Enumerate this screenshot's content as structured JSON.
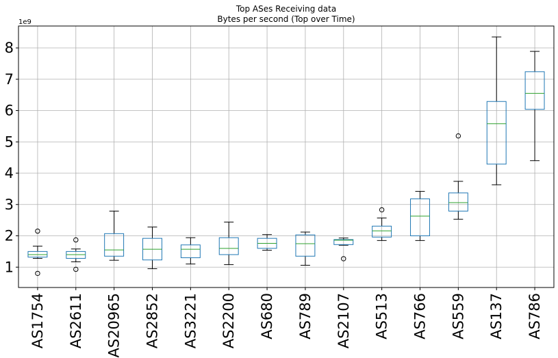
{
  "chart_data": {
    "type": "box",
    "title": "Top ASes Receiving data",
    "subtitle": "Bytes per second (Top over Time)",
    "y_offset_label": "1e9",
    "xlabel": "",
    "ylabel": "",
    "ylim": [
      0.35,
      8.7
    ],
    "yticks": [
      1,
      2,
      3,
      4,
      5,
      6,
      7,
      8
    ],
    "grid": true,
    "colors": {
      "box": "#1f77b4",
      "median": "#2ca02c",
      "whisker": "#000000",
      "grid": "#b0b0b0"
    },
    "categories": [
      "AS1754",
      "AS2611",
      "AS20965",
      "AS2852",
      "AS3221",
      "AS2200",
      "AS680",
      "AS789",
      "AS2107",
      "AS513",
      "AS766",
      "AS559",
      "AS137",
      "AS786"
    ],
    "boxes": [
      {
        "name": "AS1754",
        "whislo": 1.28,
        "q1": 1.32,
        "med": 1.4,
        "q3": 1.5,
        "whishi": 1.67,
        "fliers": [
          2.15,
          0.8
        ]
      },
      {
        "name": "AS2611",
        "whislo": 1.17,
        "q1": 1.28,
        "med": 1.4,
        "q3": 1.5,
        "whishi": 1.58,
        "fliers": [
          1.87,
          0.93
        ]
      },
      {
        "name": "AS20965",
        "whislo": 1.22,
        "q1": 1.35,
        "med": 1.55,
        "q3": 2.07,
        "whishi": 2.79,
        "fliers": []
      },
      {
        "name": "AS2852",
        "whislo": 0.95,
        "q1": 1.23,
        "med": 1.57,
        "q3": 1.92,
        "whishi": 2.28,
        "fliers": []
      },
      {
        "name": "AS3221",
        "whislo": 1.1,
        "q1": 1.3,
        "med": 1.57,
        "q3": 1.71,
        "whishi": 1.94,
        "fliers": []
      },
      {
        "name": "AS2200",
        "whislo": 1.08,
        "q1": 1.4,
        "med": 1.6,
        "q3": 1.94,
        "whishi": 2.44,
        "fliers": []
      },
      {
        "name": "AS680",
        "whislo": 1.54,
        "q1": 1.6,
        "med": 1.76,
        "q3": 1.92,
        "whishi": 2.04,
        "fliers": []
      },
      {
        "name": "AS789",
        "whislo": 1.06,
        "q1": 1.35,
        "med": 1.75,
        "q3": 2.03,
        "whishi": 2.12,
        "fliers": []
      },
      {
        "name": "AS2107",
        "whislo": 1.7,
        "q1": 1.72,
        "med": 1.86,
        "q3": 1.88,
        "whishi": 1.93,
        "fliers": [
          1.27
        ]
      },
      {
        "name": "AS513",
        "whislo": 1.85,
        "q1": 1.96,
        "med": 2.16,
        "q3": 2.31,
        "whishi": 2.57,
        "fliers": [
          2.83
        ]
      },
      {
        "name": "AS766",
        "whislo": 1.85,
        "q1": 2.0,
        "med": 2.63,
        "q3": 3.18,
        "whishi": 3.42,
        "fliers": []
      },
      {
        "name": "AS559",
        "whislo": 2.53,
        "q1": 2.79,
        "med": 3.06,
        "q3": 3.37,
        "whishi": 3.74,
        "fliers": [
          5.19
        ]
      },
      {
        "name": "AS137",
        "whislo": 3.63,
        "q1": 4.29,
        "med": 5.58,
        "q3": 6.29,
        "whishi": 8.35,
        "fliers": []
      },
      {
        "name": "AS786",
        "whislo": 4.4,
        "q1": 6.04,
        "med": 6.55,
        "q3": 7.24,
        "whishi": 7.89,
        "fliers": []
      }
    ]
  }
}
